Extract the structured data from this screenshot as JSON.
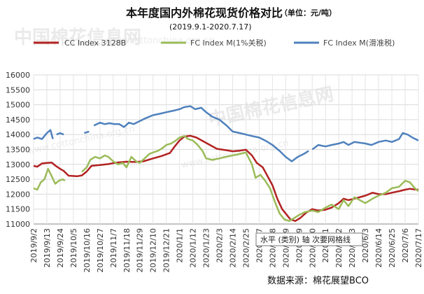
{
  "watermark": {
    "logo_text": "中国棉花信息网",
    "url": "www.cottonchina.org.cn"
  },
  "chart_data": {
    "type": "line",
    "title": "本年度国内外棉花现货价格对比",
    "unit": "（单位：元/吨）",
    "subtitle": "(2019.9.1-2020.7.17)",
    "source": "数据来源：棉花展望BCO",
    "tooltip": "水平 (类别) 轴 次要网格线",
    "legend_position": "top",
    "grid": true,
    "ylim": [
      11000,
      16000
    ],
    "yticks": [
      11000,
      11500,
      12000,
      12500,
      13000,
      13500,
      14000,
      14500,
      15000,
      15500,
      16000
    ],
    "x_tick_labels": [
      "2019/9/2",
      "2019/9/13",
      "2019/9/24",
      "2019/10/5",
      "2019/10/16",
      "2019/10/27",
      "2019/11/7",
      "2019/11/18",
      "2019/11/29",
      "2019/12/10",
      "2019/12/21",
      "2020/1/1",
      "2020/1/12",
      "2020/1/23",
      "2020/2/3",
      "2020/2/14",
      "2020/2/25",
      "2020/3/7",
      "2020/3/18",
      "2020/3/29",
      "2020/4/9",
      "2020/4/20",
      "2020/5/1",
      "2020/5/12",
      "2020/5/23",
      "2020/6/3",
      "2020/6/14",
      "2020/6/25",
      "2020/7/6",
      "2020/7/17"
    ],
    "series": [
      {
        "name": "CC Index 3128B",
        "color": "#b22222",
        "points": [
          [
            "2019/9/2",
            12950
          ],
          [
            "2019/9/5",
            12920
          ],
          [
            "2019/9/9",
            13030
          ],
          [
            "2019/9/13",
            13050
          ],
          [
            "2019/9/17",
            13060
          ],
          [
            "2019/9/20",
            12960
          ],
          [
            "2019/9/24",
            12850
          ],
          [
            "2019/9/27",
            12780
          ],
          [
            "2019/10/1",
            12620
          ],
          [
            "2019/10/8",
            12600
          ],
          [
            "2019/10/12",
            12630
          ],
          [
            "2019/10/16",
            12760
          ],
          [
            "2019/10/20",
            12950
          ],
          [
            "2019/10/27",
            12980
          ],
          [
            "2019/11/3",
            13010
          ],
          [
            "2019/11/10",
            13060
          ],
          [
            "2019/11/18",
            13090
          ],
          [
            "2019/11/25",
            13080
          ],
          [
            "2019/12/2",
            13100
          ],
          [
            "2019/12/10",
            13200
          ],
          [
            "2019/12/17",
            13280
          ],
          [
            "2019/12/24",
            13380
          ],
          [
            "2019/12/28",
            13600
          ],
          [
            "2020/1/1",
            13800
          ],
          [
            "2020/1/5",
            13930
          ],
          [
            "2020/1/10",
            13960
          ],
          [
            "2020/1/15",
            13900
          ],
          [
            "2020/1/23",
            13720
          ],
          [
            "2020/2/1",
            13520
          ],
          [
            "2020/2/8",
            13480
          ],
          [
            "2020/2/14",
            13440
          ],
          [
            "2020/2/20",
            13460
          ],
          [
            "2020/2/25",
            13490
          ],
          [
            "2020/3/1",
            13300
          ],
          [
            "2020/3/5",
            13050
          ],
          [
            "2020/3/10",
            12900
          ],
          [
            "2020/3/14",
            12600
          ],
          [
            "2020/3/18",
            12300
          ],
          [
            "2020/3/22",
            11850
          ],
          [
            "2020/3/26",
            11500
          ],
          [
            "2020/3/30",
            11300
          ],
          [
            "2020/4/2",
            11150
          ],
          [
            "2020/4/6",
            11100
          ],
          [
            "2020/4/10",
            11200
          ],
          [
            "2020/4/15",
            11380
          ],
          [
            "2020/4/20",
            11500
          ],
          [
            "2020/4/25",
            11450
          ],
          [
            "2020/5/1",
            11480
          ],
          [
            "2020/5/6",
            11550
          ],
          [
            "2020/5/12",
            11700
          ],
          [
            "2020/5/16",
            11850
          ],
          [
            "2020/5/20",
            11800
          ],
          [
            "2020/5/25",
            11850
          ],
          [
            "2020/6/3",
            11950
          ],
          [
            "2020/6/9",
            12050
          ],
          [
            "2020/6/14",
            12000
          ],
          [
            "2020/6/20",
            12000
          ],
          [
            "2020/6/25",
            12050
          ],
          [
            "2020/7/1",
            12100
          ],
          [
            "2020/7/6",
            12150
          ],
          [
            "2020/7/10",
            12180
          ],
          [
            "2020/7/14",
            12160
          ],
          [
            "2020/7/17",
            12150
          ]
        ]
      },
      {
        "name": "FC Index M(1%关税)",
        "color": "#9bbb59",
        "points": [
          [
            "2019/9/2",
            12200
          ],
          [
            "2019/9/5",
            12150
          ],
          [
            "2019/9/8",
            12400
          ],
          [
            "2019/9/11",
            12500
          ],
          [
            "2019/9/14",
            12850
          ],
          [
            "2019/9/17",
            12600
          ],
          [
            "2019/9/20",
            12350
          ],
          [
            "2019/9/23",
            12450
          ],
          [
            "2019/9/26",
            12500
          ],
          [
            "2019/9/28",
            12450
          ],
          null,
          [
            "2019/10/12",
            12750
          ],
          [
            "2019/10/16",
            12900
          ],
          [
            "2019/10/19",
            13150
          ],
          [
            "2019/10/23",
            13250
          ],
          [
            "2019/10/27",
            13200
          ],
          [
            "2019/10/31",
            13300
          ],
          [
            "2019/11/3",
            13250
          ],
          [
            "2019/11/7",
            13100
          ],
          [
            "2019/11/11",
            13000
          ],
          [
            "2019/11/15",
            13050
          ],
          [
            "2019/11/18",
            12900
          ],
          [
            "2019/11/22",
            13250
          ],
          [
            "2019/11/26",
            13100
          ],
          [
            "2019/11/29",
            13050
          ],
          [
            "2019/12/3",
            13200
          ],
          [
            "2019/12/7",
            13350
          ],
          [
            "2019/12/10",
            13400
          ],
          [
            "2019/12/14",
            13450
          ],
          [
            "2019/12/18",
            13550
          ],
          [
            "2019/12/21",
            13650
          ],
          [
            "2019/12/25",
            13700
          ],
          [
            "2019/12/29",
            13800
          ],
          [
            "2020/1/1",
            13900
          ],
          [
            "2020/1/5",
            13950
          ],
          [
            "2020/1/8",
            13850
          ],
          [
            "2020/1/12",
            13800
          ],
          [
            "2020/1/16",
            13650
          ],
          [
            "2020/1/20",
            13450
          ],
          [
            "2020/1/23",
            13200
          ],
          [
            "2020/1/28",
            13150
          ],
          [
            "2020/2/3",
            13200
          ],
          [
            "2020/2/8",
            13250
          ],
          [
            "2020/2/14",
            13300
          ],
          [
            "2020/2/20",
            13350
          ],
          [
            "2020/2/25",
            13400
          ],
          [
            "2020/3/1",
            13000
          ],
          [
            "2020/3/4",
            12550
          ],
          [
            "2020/3/8",
            12650
          ],
          [
            "2020/3/12",
            12450
          ],
          [
            "2020/3/16",
            12200
          ],
          [
            "2020/3/20",
            11750
          ],
          [
            "2020/3/24",
            11350
          ],
          [
            "2020/3/28",
            11150
          ],
          [
            "2020/4/1",
            11100
          ],
          [
            "2020/4/5",
            11200
          ],
          [
            "2020/4/9",
            11300
          ],
          [
            "2020/4/14",
            11400
          ],
          [
            "2020/4/20",
            11450
          ],
          [
            "2020/4/25",
            11400
          ],
          [
            "2020/5/1",
            11550
          ],
          [
            "2020/5/6",
            11650
          ],
          [
            "2020/5/12",
            11500
          ],
          [
            "2020/5/16",
            11800
          ],
          [
            "2020/5/20",
            11600
          ],
          [
            "2020/5/25",
            11900
          ],
          [
            "2020/6/3",
            11700
          ],
          [
            "2020/6/9",
            11850
          ],
          [
            "2020/6/14",
            11950
          ],
          [
            "2020/6/20",
            12050
          ],
          [
            "2020/6/25",
            12200
          ],
          [
            "2020/7/1",
            12250
          ],
          [
            "2020/7/6",
            12450
          ],
          [
            "2020/7/10",
            12400
          ],
          [
            "2020/7/14",
            12200
          ],
          [
            "2020/7/17",
            12100
          ]
        ]
      },
      {
        "name": "FC Index M(滑准税)",
        "color": "#4f81bd",
        "points": [
          [
            "2019/9/2",
            13850
          ],
          [
            "2019/9/5",
            13900
          ],
          [
            "2019/9/9",
            13850
          ],
          [
            "2019/9/13",
            14050
          ],
          [
            "2019/9/16",
            14150
          ],
          [
            "2019/9/18",
            13850
          ],
          null,
          [
            "2019/9/21",
            14000
          ],
          [
            "2019/9/24",
            14050
          ],
          [
            "2019/9/27",
            14000
          ],
          null,
          [
            "2019/10/14",
            14050
          ],
          [
            "2019/10/18",
            14100
          ],
          null,
          [
            "2019/10/22",
            14300
          ],
          [
            "2019/10/27",
            14400
          ],
          [
            "2019/10/31",
            14350
          ],
          [
            "2019/11/4",
            14380
          ],
          [
            "2019/11/8",
            14350
          ],
          [
            "2019/11/12",
            14350
          ],
          [
            "2019/11/16",
            14250
          ],
          [
            "2019/11/20",
            14400
          ],
          [
            "2019/11/24",
            14350
          ],
          [
            "2019/11/29",
            14450
          ],
          [
            "2019/12/4",
            14550
          ],
          [
            "2019/12/10",
            14650
          ],
          [
            "2019/12/16",
            14700
          ],
          [
            "2019/12/21",
            14750
          ],
          [
            "2019/12/27",
            14800
          ],
          [
            "2020/1/1",
            14850
          ],
          [
            "2020/1/5",
            14920
          ],
          [
            "2020/1/10",
            14950
          ],
          [
            "2020/1/14",
            14850
          ],
          [
            "2020/1/19",
            14900
          ],
          [
            "2020/1/23",
            14750
          ],
          [
            "2020/1/28",
            14600
          ],
          [
            "2020/2/3",
            14500
          ],
          [
            "2020/2/9",
            14300
          ],
          [
            "2020/2/14",
            14100
          ],
          [
            "2020/2/20",
            14050
          ],
          [
            "2020/2/25",
            14000
          ],
          [
            "2020/3/1",
            13950
          ],
          [
            "2020/3/7",
            13900
          ],
          [
            "2020/3/12",
            13800
          ],
          [
            "2020/3/18",
            13650
          ],
          [
            "2020/3/24",
            13450
          ],
          [
            "2020/3/29",
            13250
          ],
          [
            "2020/4/3",
            13100
          ],
          [
            "2020/4/8",
            13250
          ],
          [
            "2020/4/13",
            13350
          ],
          [
            "2020/4/17",
            13450
          ],
          null,
          [
            "2020/4/20",
            13500
          ],
          [
            "2020/4/25",
            13650
          ],
          [
            "2020/5/1",
            13600
          ],
          [
            "2020/5/6",
            13650
          ],
          [
            "2020/5/12",
            13700
          ],
          [
            "2020/5/16",
            13750
          ],
          [
            "2020/5/20",
            13650
          ],
          [
            "2020/5/25",
            13750
          ],
          [
            "2020/6/3",
            13700
          ],
          [
            "2020/6/8",
            13650
          ],
          [
            "2020/6/14",
            13750
          ],
          [
            "2020/6/20",
            13800
          ],
          [
            "2020/6/25",
            13750
          ],
          [
            "2020/7/1",
            13850
          ],
          [
            "2020/7/4",
            14050
          ],
          [
            "2020/7/8",
            14000
          ],
          [
            "2020/7/12",
            13900
          ],
          [
            "2020/7/17",
            13800
          ]
        ]
      }
    ]
  }
}
